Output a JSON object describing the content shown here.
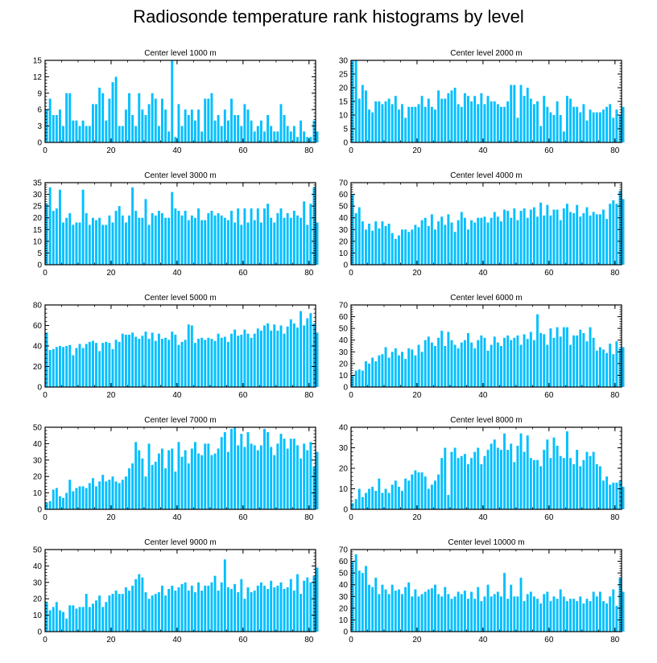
{
  "title": "Radiosonde temperature rank histograms by level",
  "colors": {
    "bar": "#00bfff",
    "axis": "#000000",
    "background": "#ffffff"
  },
  "chart_data": [
    {
      "type": "bar",
      "title": "Center level 1000 m",
      "xlabel": "",
      "ylabel": "",
      "xlim": [
        0,
        82
      ],
      "ylim": [
        0,
        15
      ],
      "yticks": [
        0,
        3,
        6,
        9,
        12,
        15
      ],
      "xticks": [
        0,
        20,
        40,
        60,
        80
      ],
      "values": [
        6,
        8,
        5,
        5,
        6,
        3,
        9,
        9,
        4,
        4,
        3,
        4,
        3,
        3,
        7,
        7,
        10,
        9,
        4,
        8,
        11,
        12,
        3,
        3,
        6,
        9,
        5,
        3,
        9,
        6,
        5,
        7,
        9,
        8,
        3,
        8,
        6,
        2,
        15,
        1,
        7,
        3,
        6,
        5,
        6,
        4,
        6,
        2,
        8,
        8,
        9,
        4,
        5,
        3,
        6,
        4,
        8,
        5,
        5,
        3,
        7,
        6,
        4,
        2,
        3,
        4,
        2,
        5,
        3,
        2,
        2,
        7,
        5,
        3,
        2,
        3,
        1,
        4,
        2,
        1,
        1,
        4,
        2
      ]
    },
    {
      "type": "bar",
      "title": "Center level 2000 m",
      "xlabel": "",
      "ylabel": "",
      "xlim": [
        0,
        82
      ],
      "ylim": [
        0,
        30
      ],
      "yticks": [
        0,
        5,
        10,
        15,
        20,
        25,
        30
      ],
      "xticks": [
        0,
        20,
        40,
        60,
        80
      ],
      "values": [
        30,
        30,
        16,
        21,
        19,
        12,
        11,
        15,
        15,
        14,
        15,
        16,
        14,
        17,
        12,
        14,
        9,
        13,
        13,
        13,
        14,
        17,
        13,
        16,
        13,
        12,
        19,
        16,
        16,
        18,
        19,
        20,
        14,
        13,
        18,
        17,
        15,
        17,
        14,
        18,
        14,
        17,
        15,
        15,
        14,
        13,
        13,
        15,
        21,
        21,
        9,
        21,
        17,
        20,
        16,
        14,
        15,
        6,
        17,
        13,
        11,
        10,
        15,
        10,
        4,
        17,
        16,
        13,
        13,
        11,
        14,
        8,
        12,
        11,
        11,
        11,
        12,
        13,
        14,
        9,
        12,
        10,
        13
      ]
    },
    {
      "type": "bar",
      "title": "Center level 3000 m",
      "xlabel": "",
      "ylabel": "",
      "xlim": [
        0,
        82
      ],
      "ylim": [
        0,
        35
      ],
      "yticks": [
        0,
        5,
        10,
        15,
        20,
        25,
        30,
        35
      ],
      "xticks": [
        0,
        20,
        40,
        60,
        80
      ],
      "values": [
        26,
        33,
        23,
        24,
        32,
        18,
        20,
        22,
        17,
        18,
        18,
        32,
        22,
        17,
        20,
        19,
        20,
        17,
        17,
        21,
        18,
        23,
        25,
        21,
        18,
        21,
        33,
        23,
        20,
        20,
        28,
        17,
        22,
        21,
        23,
        22,
        20,
        20,
        31,
        24,
        23,
        21,
        23,
        19,
        21,
        20,
        24,
        19,
        19,
        22,
        23,
        21,
        22,
        21,
        20,
        19,
        23,
        18,
        24,
        17,
        24,
        18,
        24,
        19,
        24,
        18,
        24,
        26,
        20,
        18,
        22,
        24,
        20,
        22,
        20,
        23,
        21,
        20,
        27,
        17,
        26,
        33,
        18
      ]
    },
    {
      "type": "bar",
      "title": "Center level 4000 m",
      "xlabel": "",
      "ylabel": "",
      "xlim": [
        0,
        82
      ],
      "ylim": [
        0,
        70
      ],
      "yticks": [
        0,
        10,
        20,
        30,
        40,
        50,
        60,
        70
      ],
      "xticks": [
        0,
        20,
        40,
        60,
        80
      ],
      "values": [
        60,
        44,
        49,
        37,
        30,
        35,
        29,
        37,
        31,
        37,
        33,
        35,
        27,
        22,
        25,
        30,
        30,
        28,
        30,
        34,
        32,
        38,
        40,
        33,
        43,
        30,
        37,
        41,
        34,
        43,
        36,
        28,
        38,
        45,
        40,
        30,
        38,
        36,
        40,
        40,
        41,
        36,
        40,
        45,
        41,
        37,
        47,
        46,
        40,
        48,
        38,
        46,
        48,
        40,
        47,
        49,
        41,
        53,
        42,
        51,
        42,
        47,
        47,
        38,
        48,
        52,
        45,
        44,
        51,
        41,
        44,
        49,
        42,
        45,
        43,
        43,
        47,
        39,
        52,
        55,
        52,
        63,
        56
      ]
    },
    {
      "type": "bar",
      "title": "Center level 5000 m",
      "xlabel": "",
      "ylabel": "",
      "xlim": [
        0,
        82
      ],
      "ylim": [
        0,
        80
      ],
      "yticks": [
        0,
        20,
        40,
        60,
        80
      ],
      "xticks": [
        0,
        20,
        40,
        60,
        80
      ],
      "values": [
        53,
        36,
        37,
        39,
        40,
        39,
        40,
        41,
        31,
        38,
        42,
        38,
        42,
        44,
        45,
        43,
        35,
        43,
        44,
        43,
        37,
        46,
        44,
        52,
        51,
        51,
        53,
        49,
        47,
        50,
        54,
        47,
        53,
        45,
        52,
        47,
        48,
        46,
        54,
        51,
        41,
        44,
        46,
        61,
        60,
        43,
        47,
        48,
        46,
        48,
        47,
        45,
        52,
        48,
        49,
        44,
        52,
        56,
        50,
        51,
        56,
        52,
        48,
        52,
        57,
        55,
        60,
        62,
        55,
        61,
        55,
        60,
        52,
        59,
        66,
        62,
        58,
        74,
        60,
        67,
        72,
        62,
        53
      ]
    },
    {
      "type": "bar",
      "title": "Center level 6000 m",
      "xlabel": "",
      "ylabel": "",
      "xlim": [
        0,
        82
      ],
      "ylim": [
        0,
        70
      ],
      "yticks": [
        0,
        10,
        20,
        30,
        40,
        50,
        60,
        70
      ],
      "xticks": [
        0,
        20,
        40,
        60,
        80
      ],
      "values": [
        10,
        14,
        15,
        14,
        22,
        20,
        25,
        22,
        27,
        28,
        34,
        25,
        30,
        33,
        27,
        30,
        24,
        33,
        32,
        27,
        36,
        30,
        40,
        43,
        38,
        35,
        42,
        48,
        35,
        47,
        40,
        36,
        33,
        38,
        40,
        46,
        38,
        33,
        40,
        44,
        42,
        31,
        36,
        43,
        38,
        35,
        42,
        44,
        40,
        42,
        44,
        36,
        45,
        41,
        47,
        40,
        62,
        46,
        45,
        36,
        50,
        42,
        51,
        43,
        51,
        51,
        36,
        44,
        44,
        49,
        46,
        39,
        51,
        42,
        31,
        34,
        32,
        29,
        37,
        28,
        39,
        33,
        34
      ]
    },
    {
      "type": "bar",
      "title": "Center level 7000 m",
      "xlabel": "",
      "ylabel": "",
      "xlim": [
        0,
        82
      ],
      "ylim": [
        0,
        50
      ],
      "yticks": [
        0,
        10,
        20,
        30,
        40,
        50
      ],
      "xticks": [
        0,
        20,
        40,
        60,
        80
      ],
      "values": [
        4,
        5,
        12,
        13,
        8,
        7,
        10,
        18,
        11,
        13,
        14,
        14,
        13,
        16,
        19,
        14,
        17,
        21,
        17,
        18,
        20,
        17,
        16,
        18,
        20,
        25,
        28,
        41,
        36,
        31,
        20,
        40,
        27,
        29,
        34,
        37,
        25,
        36,
        37,
        23,
        41,
        32,
        36,
        28,
        37,
        41,
        34,
        33,
        40,
        40,
        33,
        34,
        37,
        44,
        47,
        35,
        49,
        50,
        39,
        46,
        38,
        47,
        40,
        39,
        36,
        39,
        49,
        47,
        38,
        33,
        40,
        46,
        43,
        37,
        43,
        43,
        39,
        31,
        40,
        36,
        41,
        26,
        35
      ]
    },
    {
      "type": "bar",
      "title": "Center level 8000 m",
      "xlabel": "",
      "ylabel": "",
      "xlim": [
        0,
        82
      ],
      "ylim": [
        0,
        40
      ],
      "yticks": [
        0,
        10,
        20,
        30,
        40
      ],
      "xticks": [
        0,
        20,
        40,
        60,
        80
      ],
      "values": [
        3,
        5,
        10,
        6,
        8,
        10,
        11,
        9,
        15,
        8,
        10,
        8,
        12,
        14,
        11,
        9,
        15,
        14,
        17,
        19,
        18,
        18,
        16,
        10,
        12,
        14,
        17,
        25,
        30,
        7,
        28,
        30,
        25,
        26,
        27,
        22,
        25,
        28,
        30,
        22,
        26,
        29,
        32,
        34,
        30,
        29,
        37,
        29,
        32,
        23,
        31,
        37,
        28,
        36,
        25,
        24,
        24,
        21,
        29,
        34,
        25,
        35,
        31,
        26,
        25,
        38,
        25,
        22,
        29,
        21,
        24,
        28,
        26,
        28,
        22,
        21,
        14,
        16,
        12,
        13,
        13,
        14,
        11
      ]
    },
    {
      "type": "bar",
      "title": "Center level 9000 m",
      "xlabel": "",
      "ylabel": "",
      "xlim": [
        0,
        82
      ],
      "ylim": [
        0,
        50
      ],
      "yticks": [
        0,
        10,
        20,
        30,
        40,
        50
      ],
      "xticks": [
        0,
        20,
        40,
        60,
        80
      ],
      "values": [
        18,
        13,
        15,
        18,
        13,
        12,
        8,
        16,
        16,
        14,
        15,
        15,
        23,
        15,
        17,
        19,
        22,
        15,
        18,
        22,
        23,
        25,
        23,
        23,
        27,
        25,
        28,
        32,
        35,
        33,
        24,
        20,
        22,
        23,
        24,
        28,
        22,
        26,
        28,
        25,
        27,
        29,
        30,
        25,
        28,
        24,
        30,
        25,
        28,
        28,
        30,
        34,
        25,
        30,
        44,
        27,
        26,
        29,
        24,
        32,
        20,
        27,
        24,
        25,
        28,
        30,
        28,
        26,
        31,
        27,
        28,
        30,
        26,
        27,
        32,
        25,
        35,
        23,
        31,
        33,
        30,
        34,
        39
      ]
    },
    {
      "type": "bar",
      "title": "Center level 10000 m",
      "xlabel": "",
      "ylabel": "",
      "xlim": [
        0,
        82
      ],
      "ylim": [
        0,
        70
      ],
      "yticks": [
        0,
        10,
        20,
        30,
        40,
        50,
        60,
        70
      ],
      "xticks": [
        0,
        20,
        40,
        60,
        80
      ],
      "values": [
        60,
        66,
        52,
        50,
        56,
        40,
        38,
        46,
        32,
        40,
        36,
        32,
        40,
        35,
        36,
        32,
        38,
        42,
        30,
        36,
        30,
        32,
        34,
        36,
        37,
        40,
        32,
        30,
        38,
        32,
        28,
        30,
        34,
        32,
        35,
        28,
        34,
        28,
        38,
        26,
        30,
        40,
        30,
        32,
        34,
        30,
        50,
        28,
        40,
        30,
        30,
        46,
        26,
        32,
        34,
        30,
        28,
        24,
        32,
        34,
        26,
        30,
        28,
        36,
        30,
        26,
        28,
        28,
        26,
        30,
        24,
        28,
        26,
        34,
        30,
        34,
        26,
        24,
        30,
        36,
        22,
        46,
        34
      ]
    }
  ]
}
